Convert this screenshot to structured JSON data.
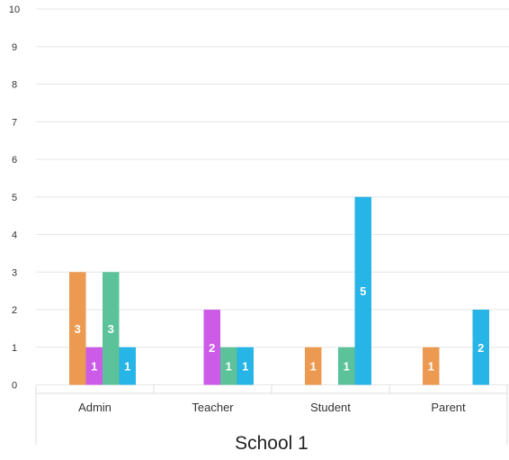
{
  "chart_data": {
    "type": "bar",
    "title": "",
    "xlabel": "School 1",
    "ylabel": "",
    "ylim": [
      0,
      10
    ],
    "yticks": [
      "0",
      "1",
      "2",
      "3",
      "4",
      "5",
      "6",
      "7",
      "8",
      "9",
      "10"
    ],
    "categories": [
      "Admin",
      "Teacher",
      "Student",
      "Parent"
    ],
    "grid": true,
    "legend": "none",
    "series": [
      {
        "color": "#ec9a52",
        "values": [
          3,
          0,
          1,
          1
        ]
      },
      {
        "color": "#cc5ce8",
        "values": [
          1,
          2,
          0,
          0
        ]
      },
      {
        "color": "#5cc29a",
        "values": [
          3,
          1,
          1,
          0
        ]
      },
      {
        "color": "#27b4e6",
        "values": [
          1,
          1,
          5,
          2
        ]
      }
    ]
  }
}
